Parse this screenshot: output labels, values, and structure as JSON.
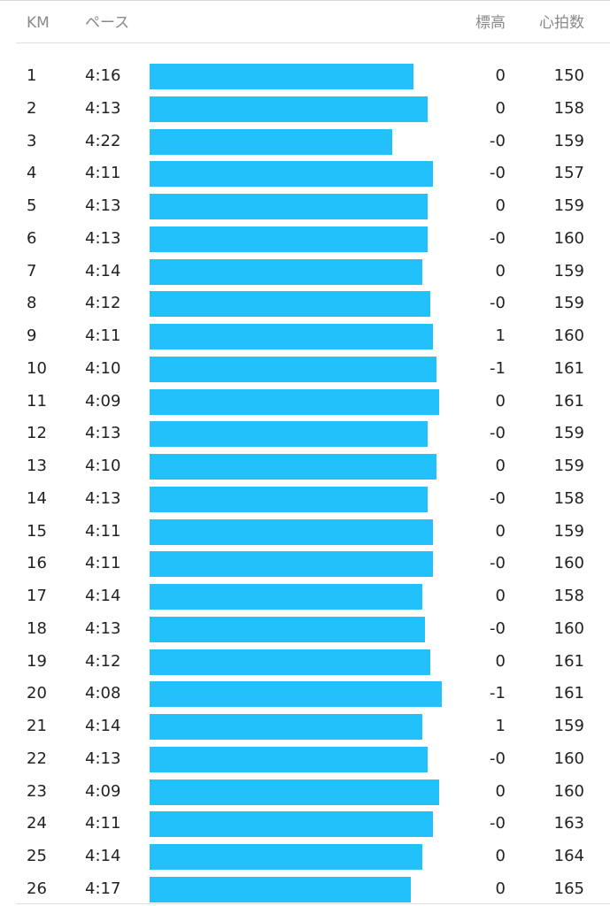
{
  "header": {
    "km": "KM",
    "pace": "ペース",
    "elevation": "標高",
    "heart_rate": "心拍数"
  },
  "bar_color": "#22c1fb",
  "splits": [
    {
      "km": "1",
      "pace": "4:16",
      "pace_bar_fraction": 0.902,
      "elevation": "0",
      "heart_rate": "150"
    },
    {
      "km": "2",
      "pace": "4:13",
      "pace_bar_fraction": 0.951,
      "elevation": "0",
      "heart_rate": "158"
    },
    {
      "km": "3",
      "pace": "4:22",
      "pace_bar_fraction": 0.829,
      "elevation": "-0",
      "heart_rate": "159"
    },
    {
      "km": "4",
      "pace": "4:11",
      "pace_bar_fraction": 0.971,
      "elevation": "-0",
      "heart_rate": "157"
    },
    {
      "km": "5",
      "pace": "4:13",
      "pace_bar_fraction": 0.951,
      "elevation": "0",
      "heart_rate": "159"
    },
    {
      "km": "6",
      "pace": "4:13",
      "pace_bar_fraction": 0.951,
      "elevation": "-0",
      "heart_rate": "160"
    },
    {
      "km": "7",
      "pace": "4:14",
      "pace_bar_fraction": 0.932,
      "elevation": "0",
      "heart_rate": "159"
    },
    {
      "km": "8",
      "pace": "4:12",
      "pace_bar_fraction": 0.961,
      "elevation": "-0",
      "heart_rate": "159"
    },
    {
      "km": "9",
      "pace": "4:11",
      "pace_bar_fraction": 0.971,
      "elevation": "1",
      "heart_rate": "160"
    },
    {
      "km": "10",
      "pace": "4:10",
      "pace_bar_fraction": 0.981,
      "elevation": "-1",
      "heart_rate": "161"
    },
    {
      "km": "11",
      "pace": "4:09",
      "pace_bar_fraction": 0.99,
      "elevation": "0",
      "heart_rate": "161"
    },
    {
      "km": "12",
      "pace": "4:13",
      "pace_bar_fraction": 0.951,
      "elevation": "-0",
      "heart_rate": "159"
    },
    {
      "km": "13",
      "pace": "4:10",
      "pace_bar_fraction": 0.981,
      "elevation": "0",
      "heart_rate": "159"
    },
    {
      "km": "14",
      "pace": "4:13",
      "pace_bar_fraction": 0.951,
      "elevation": "-0",
      "heart_rate": "158"
    },
    {
      "km": "15",
      "pace": "4:11",
      "pace_bar_fraction": 0.971,
      "elevation": "0",
      "heart_rate": "159"
    },
    {
      "km": "16",
      "pace": "4:11",
      "pace_bar_fraction": 0.971,
      "elevation": "-0",
      "heart_rate": "160"
    },
    {
      "km": "17",
      "pace": "4:14",
      "pace_bar_fraction": 0.932,
      "elevation": "0",
      "heart_rate": "158"
    },
    {
      "km": "18",
      "pace": "4:13",
      "pace_bar_fraction": 0.942,
      "elevation": "-0",
      "heart_rate": "160"
    },
    {
      "km": "19",
      "pace": "4:12",
      "pace_bar_fraction": 0.961,
      "elevation": "0",
      "heart_rate": "161"
    },
    {
      "km": "20",
      "pace": "4:08",
      "pace_bar_fraction": 1.0,
      "elevation": "-1",
      "heart_rate": "161"
    },
    {
      "km": "21",
      "pace": "4:14",
      "pace_bar_fraction": 0.932,
      "elevation": "1",
      "heart_rate": "159"
    },
    {
      "km": "22",
      "pace": "4:13",
      "pace_bar_fraction": 0.951,
      "elevation": "-0",
      "heart_rate": "160"
    },
    {
      "km": "23",
      "pace": "4:09",
      "pace_bar_fraction": 0.99,
      "elevation": "0",
      "heart_rate": "160"
    },
    {
      "km": "24",
      "pace": "4:11",
      "pace_bar_fraction": 0.971,
      "elevation": "-0",
      "heart_rate": "163"
    },
    {
      "km": "25",
      "pace": "4:14",
      "pace_bar_fraction": 0.932,
      "elevation": "0",
      "heart_rate": "164"
    },
    {
      "km": "26",
      "pace": "4:17",
      "pace_bar_fraction": 0.893,
      "elevation": "0",
      "heart_rate": "165"
    }
  ]
}
